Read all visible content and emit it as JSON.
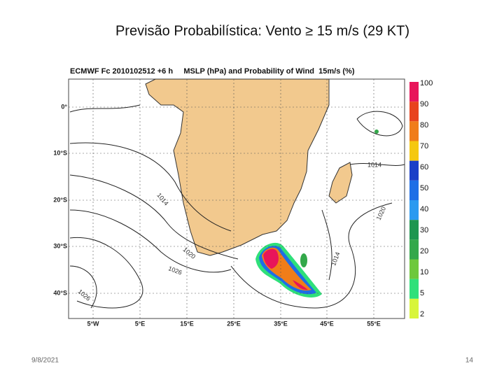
{
  "slide": {
    "title": "Previsão Probabilística: Vento ≥ 15 m/s (29 KT)",
    "date": "9/8/2021",
    "page": "14"
  },
  "map": {
    "header": "ECMWF Fc 2010102512 +6 h     MSLP (hPa) and Probability of Wind  15m/s (%)",
    "lat_labels": [
      "0°",
      "10°S",
      "20°S",
      "30°S",
      "40°S"
    ],
    "lon_labels": [
      "5°W",
      "5°E",
      "15°E",
      "25°E",
      "35°E",
      "45°E",
      "55°E"
    ],
    "contour_labels": [
      "1014",
      "1014",
      "1020",
      "1014",
      "1020",
      "1026",
      "1026"
    ],
    "colorbar": [
      {
        "label": "100",
        "color": "#e8155a"
      },
      {
        "label": "90",
        "color": "#e8431e"
      },
      {
        "label": "80",
        "color": "#f07d1a"
      },
      {
        "label": "70",
        "color": "#f5c80f"
      },
      {
        "label": "60",
        "color": "#1a3fc8"
      },
      {
        "label": "50",
        "color": "#1e6ee6"
      },
      {
        "label": "40",
        "color": "#2a9af0"
      },
      {
        "label": "30",
        "color": "#1e9650"
      },
      {
        "label": "20",
        "color": "#33a84a"
      },
      {
        "label": "10",
        "color": "#6ec83c"
      },
      {
        "label": "5",
        "color": "#2fe07a"
      },
      {
        "label": "2",
        "color": "#d8f53a"
      }
    ]
  }
}
